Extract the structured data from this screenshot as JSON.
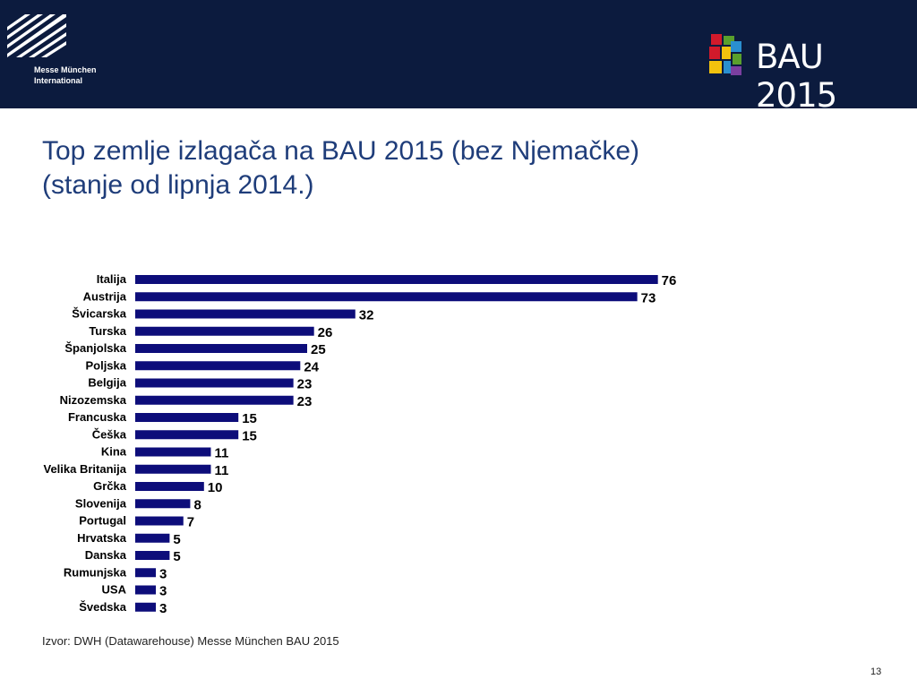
{
  "header": {
    "logo_left_line1": "Messe München",
    "logo_left_line2": "International",
    "logo_right_text": "BAU 2015"
  },
  "title": {
    "line1": "Top zemlje izlagača na BAU 2015 (bez Njemačke)",
    "line2": "(stanje od lipnja 2014.)"
  },
  "chart_data": {
    "type": "bar",
    "orientation": "horizontal",
    "categories": [
      "Italija",
      "Austrija",
      "Švicarska",
      "Turska",
      "Španjolska",
      "Poljska",
      "Belgija",
      "Nizozemska",
      "Francuska",
      "Češka",
      "Kina",
      "Velika Britanija",
      "Grčka",
      "Slovenija",
      "Portugal",
      "Hrvatska",
      "Danska",
      "Rumunjska",
      "USA",
      "Švedska"
    ],
    "values": [
      76,
      73,
      32,
      26,
      25,
      24,
      23,
      23,
      15,
      15,
      11,
      11,
      10,
      8,
      7,
      5,
      5,
      3,
      3,
      3
    ],
    "bar_color": "#0d0d7a",
    "data_labels": true,
    "grid": false,
    "legend": "none"
  },
  "footer": {
    "source": "Izvor: DWH (Datawarehouse)  Messe München BAU 2015",
    "page_number": "13"
  }
}
